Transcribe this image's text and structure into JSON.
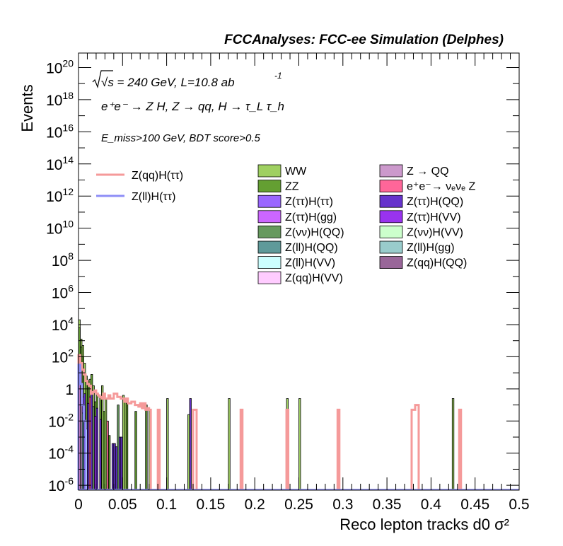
{
  "header": {
    "title": "FCCAnalyses: FCC-ee Simulation (Delphes)",
    "line_energy": "√s = 240 GeV, L=10.8 ab",
    "line_energy_exp": "-1",
    "line_process": "e⁺e⁻ → Z H, Z → qq, H → τ_L τ_h",
    "line_cuts": "E_miss>100 GeV, BDT score>0.5"
  },
  "chart_data": {
    "type": "bar",
    "title": "FCCAnalyses: FCC-ee Simulation (Delphes)",
    "xlabel": "Reco lepton tracks d0 σ²",
    "ylabel": "Events",
    "xlim": [
      0,
      0.5
    ],
    "ylim_log10": [
      -6.3,
      20.9
    ],
    "y_scale": "log",
    "grid": false,
    "legend_placement": "top-right",
    "x_ticks": [
      "0",
      "0.05",
      "0.1",
      "0.15",
      "0.2",
      "0.25",
      "0.3",
      "0.35",
      "0.4",
      "0.45",
      "0.5"
    ],
    "y_ticks": [
      {
        "base": "10",
        "exp": "20",
        "v": 20
      },
      {
        "base": "10",
        "exp": "18",
        "v": 18
      },
      {
        "base": "10",
        "exp": "16",
        "v": 16
      },
      {
        "base": "10",
        "exp": "14",
        "v": 14
      },
      {
        "base": "10",
        "exp": "12",
        "v": 12
      },
      {
        "base": "10",
        "exp": "10",
        "v": 10
      },
      {
        "base": "10",
        "exp": "8",
        "v": 8
      },
      {
        "base": "10",
        "exp": "6",
        "v": 6
      },
      {
        "base": "10",
        "exp": "4",
        "v": 4
      },
      {
        "base": "10",
        "exp": "2",
        "v": 2
      },
      {
        "base": "1",
        "exp": "",
        "v": 0
      },
      {
        "base": "10",
        "exp": "-2",
        "v": -2
      },
      {
        "base": "10",
        "exp": "-4",
        "v": -4
      },
      {
        "base": "10",
        "exp": "-6",
        "v": -6
      }
    ],
    "stack_series": [
      {
        "name": "WW",
        "color": "#9fd061",
        "bars": [
          [
            0.0,
            0.002,
            4.3
          ],
          [
            0.002,
            0.004,
            3.1
          ],
          [
            0.004,
            0.006,
            2.7
          ],
          [
            0.006,
            0.008,
            1.6
          ],
          [
            0.012,
            0.014,
            0.6
          ],
          [
            0.016,
            0.018,
            0.2
          ],
          [
            0.026,
            0.028,
            0.2
          ],
          [
            0.03,
            0.032,
            -0.6
          ],
          [
            0.05,
            0.052,
            -0.4
          ],
          [
            0.052,
            0.054,
            -0.6
          ],
          [
            0.08,
            0.082,
            -1.3
          ],
          [
            0.1,
            0.102,
            -0.6
          ],
          [
            0.124,
            0.126,
            -1.6
          ],
          [
            0.17,
            0.172,
            -0.6
          ],
          [
            0.236,
            0.238,
            -0.6
          ],
          [
            0.25,
            0.252,
            -0.6
          ],
          [
            0.424,
            0.426,
            -0.6
          ]
        ]
      },
      {
        "name": "ZZ",
        "color": "#649f32",
        "bars": [
          [
            0.0,
            0.002,
            3.8
          ],
          [
            0.002,
            0.004,
            2.6
          ],
          [
            0.004,
            0.006,
            2.0
          ],
          [
            0.008,
            0.01,
            0.8
          ],
          [
            0.01,
            0.012,
            0.5
          ],
          [
            0.014,
            0.016,
            0.9
          ],
          [
            0.018,
            0.02,
            -0.8
          ],
          [
            0.02,
            0.022,
            -0.3
          ],
          [
            0.024,
            0.026,
            -0.5
          ],
          [
            0.028,
            0.03,
            -1.4
          ],
          [
            0.034,
            0.036,
            -2.9
          ],
          [
            0.054,
            0.056,
            -0.9
          ],
          [
            0.064,
            0.066,
            -1.4
          ],
          [
            0.076,
            0.078,
            -1.0
          ]
        ]
      },
      {
        "name": "Z(ττ)H(ττ)",
        "color": "#9a67ff",
        "bars": [
          [
            0.0,
            0.002,
            1.8
          ],
          [
            0.002,
            0.004,
            1.0
          ],
          [
            0.004,
            0.006,
            -0.5
          ]
        ]
      },
      {
        "name": "Z(ττ)H(gg)",
        "color": "#cc66ff",
        "bars": [
          [
            0.0,
            0.002,
            1.4
          ],
          [
            0.002,
            0.004,
            0.6
          ],
          [
            0.006,
            0.008,
            -1.3
          ]
        ]
      },
      {
        "name": "Z(νν)H(QQ)",
        "color": "#66995e",
        "bars": [
          [
            0.016,
            0.018,
            -1.1
          ],
          [
            0.044,
            0.046,
            -1.0
          ]
        ]
      },
      {
        "name": "Z(ll)H(QQ)",
        "color": "#5f9a9a",
        "bars": [
          [
            0.004,
            0.006,
            -1.5
          ]
        ]
      },
      {
        "name": "Z(ll)H(VV)",
        "color": "#ccffff",
        "bars": [
          [
            0.008,
            0.01,
            -2.5
          ]
        ]
      },
      {
        "name": "Z(qq)H(VV)",
        "color": "#ffccff",
        "bars": [
          [
            0.01,
            0.012,
            -2.2
          ]
        ]
      },
      {
        "name": "Z → QQ",
        "color": "#cc99cc",
        "bars": [
          [
            0.002,
            0.004,
            1.2
          ]
        ]
      },
      {
        "name": "e⁺e⁻→ νₑνₑ Z",
        "color": "#ff6699",
        "bars": [
          [
            0.0,
            0.002,
            0.3
          ],
          [
            0.012,
            0.014,
            -0.5
          ],
          [
            0.032,
            0.034,
            -2.0
          ]
        ]
      },
      {
        "name": "Z(ττ)H(QQ)",
        "color": "#6633cc",
        "bars": [
          [
            0.006,
            0.008,
            -0.3
          ],
          [
            0.01,
            0.012,
            -0.9
          ],
          [
            0.014,
            0.016,
            -0.2
          ],
          [
            0.02,
            0.022,
            -1.2
          ],
          [
            0.024,
            0.026,
            -1.9
          ],
          [
            0.038,
            0.04,
            -3.4
          ],
          [
            0.04,
            0.042,
            -3.4
          ],
          [
            0.042,
            0.044,
            -3.6
          ],
          [
            0.046,
            0.048,
            -3.0
          ],
          [
            0.048,
            0.05,
            -3.0
          ],
          [
            0.126,
            0.128,
            -0.6
          ]
        ]
      },
      {
        "name": "Z(ττ)H(VV)",
        "color": "#9933ee",
        "bars": [
          [
            0.018,
            0.02,
            -1.7
          ]
        ]
      },
      {
        "name": "Z(νν)H(VV)",
        "color": "#ccffcc",
        "bars": []
      },
      {
        "name": "Z(ll)H(gg)",
        "color": "#99cccc",
        "bars": []
      },
      {
        "name": "Z(qq)H(QQ)",
        "color": "#996699",
        "bars": []
      }
    ],
    "line_series": [
      {
        "name": "Z(qq)H(ττ)",
        "color": "#f59a9a",
        "steps": [
          [
            0.0,
            0.002,
            2.1
          ],
          [
            0.002,
            0.004,
            1.6
          ],
          [
            0.004,
            0.006,
            1.2
          ],
          [
            0.006,
            0.008,
            0.9
          ],
          [
            0.008,
            0.01,
            0.5
          ],
          [
            0.01,
            0.012,
            0.3
          ],
          [
            0.012,
            0.014,
            0.2
          ],
          [
            0.014,
            0.016,
            -0.3
          ],
          [
            0.016,
            0.018,
            -0.2
          ],
          [
            0.018,
            0.02,
            -0.1
          ],
          [
            0.02,
            0.022,
            -0.3
          ],
          [
            0.022,
            0.024,
            -0.4
          ],
          [
            0.024,
            0.026,
            -0.5
          ],
          [
            0.026,
            0.028,
            -0.6
          ],
          [
            0.028,
            0.03,
            -0.3
          ],
          [
            0.03,
            0.032,
            -0.6
          ],
          [
            0.032,
            0.034,
            -0.6
          ],
          [
            0.034,
            0.036,
            -0.4
          ],
          [
            0.036,
            0.04,
            -0.6
          ],
          [
            0.04,
            0.044,
            -0.3
          ],
          [
            0.044,
            0.048,
            -0.5
          ],
          [
            0.048,
            0.052,
            -0.6
          ],
          [
            0.052,
            0.054,
            -0.8
          ],
          [
            0.054,
            0.056,
            -0.6
          ],
          [
            0.056,
            0.06,
            -0.9
          ],
          [
            0.06,
            0.064,
            -0.8
          ],
          [
            0.064,
            0.068,
            -1.0
          ],
          [
            0.068,
            0.07,
            -1.1
          ],
          [
            0.07,
            0.072,
            -0.9
          ],
          [
            0.072,
            0.074,
            -1.2
          ],
          [
            0.074,
            0.076,
            -0.9
          ],
          [
            0.076,
            0.078,
            -1.3
          ],
          [
            0.078,
            0.08,
            -1.2
          ],
          [
            0.08,
            0.082,
            -1.3
          ],
          [
            0.09,
            0.092,
            -1.3
          ],
          [
            0.13,
            0.134,
            -1.3
          ],
          [
            0.184,
            0.186,
            -1.3
          ],
          [
            0.236,
            0.238,
            -1.3
          ],
          [
            0.294,
            0.296,
            -1.3
          ],
          [
            0.378,
            0.382,
            -1.3
          ],
          [
            0.382,
            0.386,
            -1.0
          ],
          [
            0.432,
            0.434,
            -1.3
          ]
        ]
      },
      {
        "name": "Z(ll)H(ττ)",
        "color": "#8e8ef7",
        "steps": [
          [
            0.0,
            0.002,
            1.5
          ],
          [
            0.002,
            0.004,
            0.3
          ],
          [
            0.004,
            0.006,
            -1.0
          ],
          [
            0.006,
            0.008,
            -2.0
          ]
        ]
      }
    ],
    "legend_layout": {
      "lines": [
        "Z(qq)H(ττ)",
        "Z(ll)H(ττ)"
      ],
      "col1": [
        "WW",
        "ZZ",
        "Z(ττ)H(ττ)",
        "Z(ττ)H(gg)",
        "Z(νν)H(QQ)",
        "Z(ll)H(QQ)",
        "Z(ll)H(VV)",
        "Z(qq)H(VV)"
      ],
      "col2": [
        "Z → QQ",
        "e⁺e⁻→ νₑνₑ Z",
        "Z(ττ)H(QQ)",
        "Z(ττ)H(VV)",
        "Z(νν)H(VV)",
        "Z(ll)H(gg)",
        "Z(qq)H(QQ)"
      ]
    }
  }
}
